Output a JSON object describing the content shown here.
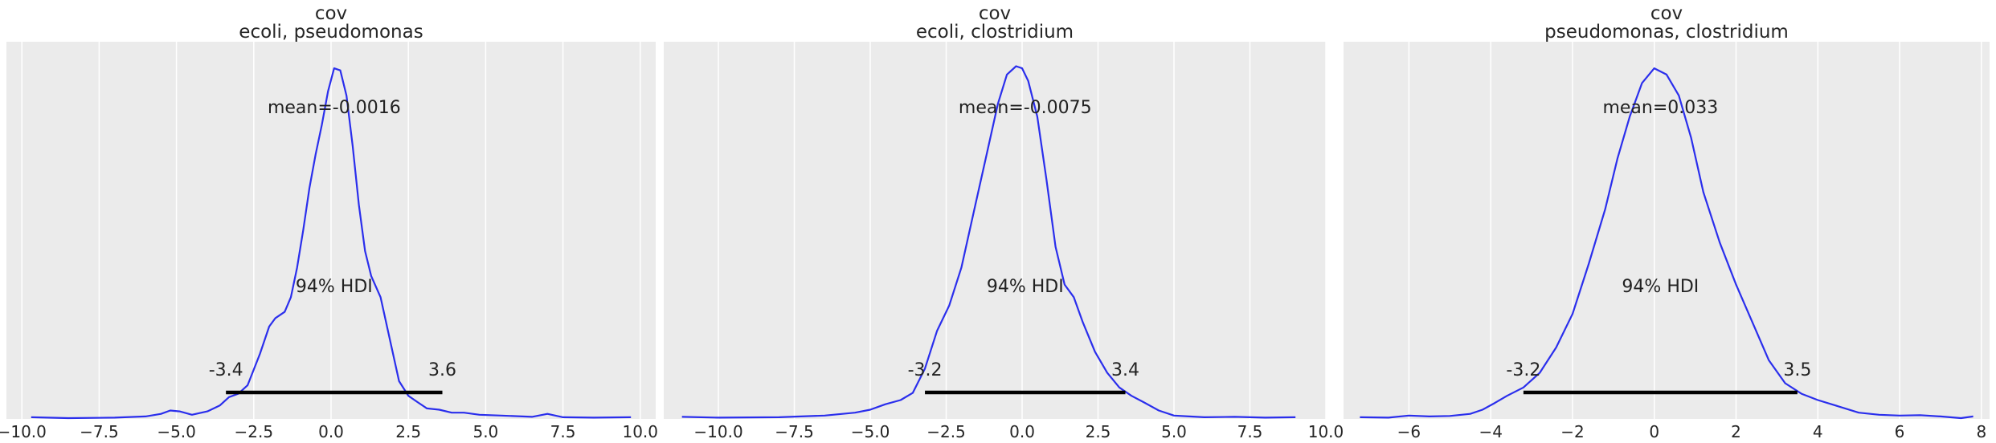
{
  "chart_data": [
    {
      "type": "line",
      "title": "cov",
      "subtitle": "ecoli, pseudomonas",
      "xlim": [
        -10.5,
        10.5
      ],
      "xticks": [
        -10.0,
        -7.5,
        -5.0,
        -2.5,
        0.0,
        2.5,
        5.0,
        7.5,
        10.0
      ],
      "xtick_labels": [
        "−10.0",
        "−7.5",
        "−5.0",
        "−2.5",
        "0.0",
        "2.5",
        "5.0",
        "7.5",
        "10.0"
      ],
      "series": [
        {
          "x": [
            -9.7,
            -8.5,
            -7.0,
            -6.0,
            -5.5,
            -5.2,
            -4.9,
            -4.5,
            -4.0,
            -3.6,
            -3.3,
            -3.0,
            -2.7,
            -2.3,
            -2.0,
            -1.8,
            -1.5,
            -1.3,
            -1.1,
            -0.9,
            -0.7,
            -0.5,
            -0.3,
            -0.1,
            0.1,
            0.3,
            0.5,
            0.7,
            0.9,
            1.1,
            1.3,
            1.6,
            1.9,
            2.2,
            2.5,
            2.8,
            3.1,
            3.5,
            3.9,
            4.3,
            4.8,
            5.5,
            6.5,
            7.0,
            7.5,
            8.5,
            9.7
          ],
          "y": [
            0.004,
            0.002,
            0.003,
            0.006,
            0.012,
            0.02,
            0.018,
            0.01,
            0.018,
            0.032,
            0.052,
            0.06,
            0.08,
            0.155,
            0.22,
            0.24,
            0.255,
            0.29,
            0.36,
            0.45,
            0.55,
            0.63,
            0.7,
            0.78,
            0.835,
            0.83,
            0.77,
            0.65,
            0.51,
            0.4,
            0.34,
            0.29,
            0.19,
            0.09,
            0.055,
            0.04,
            0.025,
            0.022,
            0.015,
            0.015,
            0.01,
            0.008,
            0.005,
            0.012,
            0.004,
            0.003,
            0.004
          ]
        }
      ],
      "mean_label": "mean=-0.0016",
      "hdi_label": "94% HDI",
      "hdi": [
        -3.4,
        3.6
      ],
      "hdi_low_label": "-3.4",
      "hdi_high_label": "3.6",
      "colors": {
        "line": "#2a2eec",
        "hdi": "#000000"
      }
    },
    {
      "type": "line",
      "title": "cov",
      "subtitle": "ecoli, clostridium",
      "xlim": [
        -11.8,
        10.0
      ],
      "xticks": [
        -10.0,
        -7.5,
        -5.0,
        -2.5,
        0.0,
        2.5,
        5.0,
        7.5,
        10.0
      ],
      "xtick_labels": [
        "−10.0",
        "−7.5",
        "−5.0",
        "−2.5",
        "0.0",
        "2.5",
        "5.0",
        "7.5",
        "10.0"
      ],
      "series": [
        {
          "x": [
            -11.2,
            -10.0,
            -8.0,
            -6.5,
            -5.5,
            -5.0,
            -4.5,
            -4.0,
            -3.6,
            -3.2,
            -2.8,
            -2.4,
            -2.0,
            -1.6,
            -1.2,
            -0.8,
            -0.5,
            -0.2,
            0.0,
            0.2,
            0.5,
            0.8,
            1.1,
            1.4,
            1.7,
            2.0,
            2.4,
            2.8,
            3.2,
            3.6,
            4.0,
            4.5,
            5.0,
            5.5,
            6.0,
            7.0,
            8.0,
            9.0
          ],
          "y": [
            0.005,
            0.003,
            0.004,
            0.008,
            0.015,
            0.022,
            0.035,
            0.045,
            0.062,
            0.12,
            0.21,
            0.27,
            0.36,
            0.49,
            0.62,
            0.75,
            0.82,
            0.84,
            0.835,
            0.805,
            0.72,
            0.57,
            0.41,
            0.32,
            0.29,
            0.23,
            0.16,
            0.11,
            0.075,
            0.055,
            0.04,
            0.02,
            0.008,
            0.006,
            0.004,
            0.005,
            0.003,
            0.004
          ]
        }
      ],
      "mean_label": "mean=-0.0075",
      "hdi_label": "94% HDI",
      "hdi": [
        -3.2,
        3.4
      ],
      "hdi_low_label": "-3.2",
      "hdi_high_label": "3.4",
      "colors": {
        "line": "#2a2eec",
        "hdi": "#000000"
      }
    },
    {
      "type": "line",
      "title": "cov",
      "subtitle": "pseudomonas, clostridium",
      "xlim": [
        -7.6,
        8.2
      ],
      "xticks": [
        -6,
        -4,
        -2,
        0,
        2,
        4,
        6,
        8
      ],
      "xtick_labels": [
        "−6",
        "−4",
        "−2",
        "0",
        "2",
        "4",
        "6",
        "8"
      ],
      "series": [
        {
          "x": [
            -7.2,
            -6.5,
            -6.0,
            -5.5,
            -5.0,
            -4.5,
            -4.2,
            -3.9,
            -3.6,
            -3.2,
            -2.8,
            -2.4,
            -2.0,
            -1.6,
            -1.2,
            -0.9,
            -0.6,
            -0.3,
            0.0,
            0.3,
            0.6,
            0.9,
            1.2,
            1.6,
            2.0,
            2.4,
            2.8,
            3.2,
            3.6,
            4.0,
            4.5,
            5.0,
            5.5,
            6.0,
            6.5,
            7.0,
            7.5,
            7.8
          ],
          "y": [
            0.004,
            0.003,
            0.008,
            0.006,
            0.007,
            0.012,
            0.022,
            0.038,
            0.055,
            0.075,
            0.11,
            0.17,
            0.25,
            0.37,
            0.5,
            0.62,
            0.72,
            0.8,
            0.835,
            0.82,
            0.77,
            0.67,
            0.54,
            0.42,
            0.32,
            0.23,
            0.14,
            0.085,
            0.06,
            0.045,
            0.03,
            0.015,
            0.01,
            0.008,
            0.009,
            0.006,
            0.002,
            0.006
          ]
        }
      ],
      "mean_label": "mean=0.033",
      "hdi_label": "94% HDI",
      "hdi": [
        -3.2,
        3.5
      ],
      "hdi_low_label": "-3.2",
      "hdi_high_label": "3.5",
      "colors": {
        "line": "#2a2eec",
        "hdi": "#000000"
      }
    }
  ]
}
